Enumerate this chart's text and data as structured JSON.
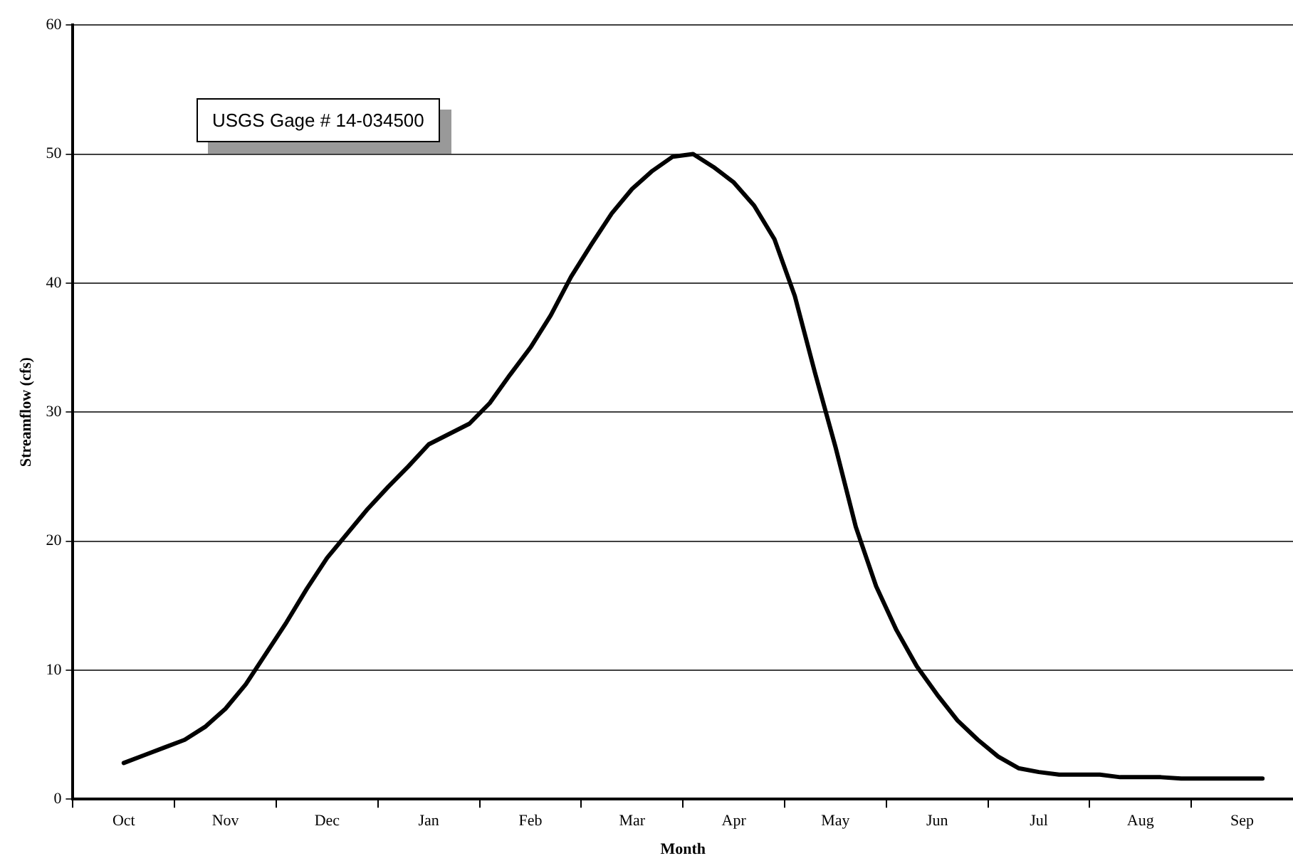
{
  "chart_data": {
    "type": "line",
    "xlabel": "Month",
    "ylabel": "Streamflow (cfs)",
    "annotations": [
      "USGS Gage # 14-034500"
    ],
    "categories": [
      null,
      null,
      "Oct",
      null,
      null,
      null,
      null,
      "Nov",
      null,
      null,
      null,
      null,
      "Dec",
      null,
      null,
      null,
      null,
      "Jan",
      null,
      null,
      null,
      null,
      "Feb",
      null,
      null,
      null,
      null,
      "Mar",
      null,
      null,
      null,
      null,
      "Apr",
      null,
      null,
      null,
      null,
      "May",
      null,
      null,
      null,
      null,
      "Jun",
      null,
      null,
      null,
      null,
      "Jul",
      null,
      null,
      null,
      null,
      "Aug",
      null,
      null,
      null,
      null,
      "Sep",
      null,
      null
    ],
    "series": [
      {
        "color": "#000000",
        "values": [
          null,
          null,
          2.8,
          3.4,
          4.0,
          4.6,
          5.6,
          7.0,
          8.9,
          11.3,
          13.7,
          16.3,
          18.7,
          20.6,
          22.5,
          24.2,
          25.8,
          27.5,
          28.3,
          29.1,
          30.7,
          32.9,
          35.0,
          37.5,
          40.5,
          43,
          45.4,
          47.3,
          48.7,
          49.8,
          50,
          49,
          47.8,
          46,
          43.4,
          39,
          33,
          27.3,
          21.1,
          16.5,
          13.1,
          10.3,
          8.1,
          6.1,
          4.6,
          3.3,
          2.4,
          2.1,
          1.9,
          1.9,
          1.9,
          1.7,
          1.7,
          1.7,
          1.6,
          1.6,
          1.6,
          1.6,
          1.6,
          null
        ]
      }
    ],
    "ylim": [
      0,
      60
    ],
    "yticks": [
      0,
      10,
      20,
      30,
      40,
      50,
      60
    ],
    "grid": "y",
    "legend": false,
    "marker": "none",
    "line_style": "solid"
  }
}
